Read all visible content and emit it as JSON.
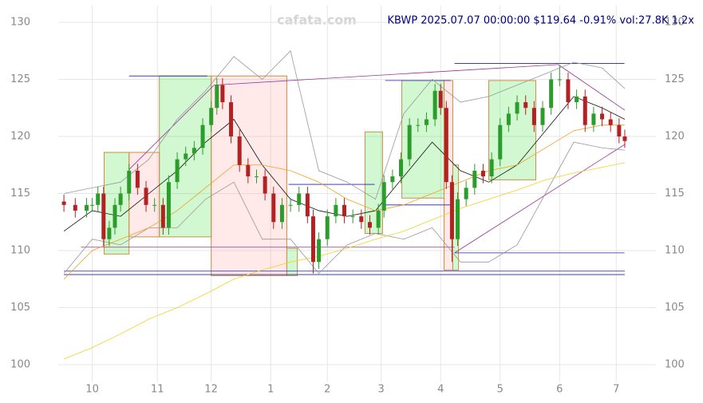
{
  "chart_data": {
    "type": "candlestick",
    "title": "KBWP 2025.07.07 00:00:00 $119.64 -0.91% vol:27.8K 1.2x",
    "watermark": "cafata.com",
    "xlim": [
      -12,
      199
    ],
    "xticks": [
      {
        "value": 0,
        "label": "10"
      },
      {
        "value": 23,
        "label": "11"
      },
      {
        "value": 42,
        "label": "12"
      },
      {
        "value": 63,
        "label": "1"
      },
      {
        "value": 83,
        "label": "2"
      },
      {
        "value": 102,
        "label": "3"
      },
      {
        "value": 123,
        "label": "4"
      },
      {
        "value": 144,
        "label": "5"
      },
      {
        "value": 165,
        "label": "6"
      },
      {
        "value": 185,
        "label": "7"
      }
    ],
    "ylim": [
      98.5,
      131.5
    ],
    "yticks": [
      100,
      105,
      110,
      115,
      120,
      125,
      130
    ],
    "grid": true,
    "up_color": "#2a9d2a",
    "down_color": "#b22222",
    "x": [
      -10,
      -6,
      -2,
      0,
      2,
      4,
      6,
      8,
      10,
      13,
      16,
      19,
      22,
      25,
      27,
      30,
      33,
      36,
      39,
      42,
      44,
      46,
      49,
      52,
      55,
      58,
      61,
      64,
      67,
      70,
      73,
      76,
      78,
      80,
      83,
      86,
      89,
      92,
      95,
      98,
      101,
      103,
      106,
      109,
      112,
      115,
      118,
      121,
      123,
      125,
      127,
      129,
      132,
      135,
      138,
      141,
      144,
      147,
      150,
      153,
      156,
      159,
      162,
      165,
      168,
      171,
      174,
      177,
      180,
      183,
      186,
      188
    ],
    "open": [
      114.3,
      114,
      113.5,
      114,
      114,
      115,
      111,
      112,
      114,
      115,
      117,
      115.5,
      114,
      114,
      112,
      116,
      118,
      118.5,
      119,
      121,
      122.5,
      124.5,
      123,
      120,
      117.5,
      116.5,
      116.5,
      115,
      112.5,
      114,
      114,
      115,
      113,
      109,
      111,
      113,
      114,
      113,
      113,
      112.5,
      112,
      113.5,
      116,
      116.5,
      118,
      121,
      121,
      121.5,
      124,
      122.5,
      116,
      111,
      114.5,
      115.5,
      117,
      116.5,
      118,
      121,
      122,
      123,
      122.5,
      121,
      122.5,
      125,
      125,
      123,
      123.5,
      121,
      122,
      121.5,
      121,
      120
    ],
    "close": [
      114,
      113.5,
      114,
      114,
      115,
      111,
      112,
      114,
      115,
      117,
      115.5,
      114,
      114,
      112,
      116,
      118,
      118.5,
      119,
      121,
      122.5,
      124.5,
      123,
      120,
      117.5,
      116.5,
      116.5,
      115,
      112.5,
      114,
      114,
      115,
      113,
      109,
      111,
      113,
      114,
      113,
      113,
      112.5,
      112,
      113.5,
      116,
      116.5,
      118,
      121,
      121,
      121.5,
      124,
      122.5,
      116,
      111,
      114.5,
      115.5,
      117,
      116.5,
      118,
      121,
      122,
      123,
      122.5,
      121,
      122.5,
      125,
      125,
      123,
      123.5,
      121,
      122,
      121.5,
      121,
      120,
      119.6
    ],
    "high": [
      114.9,
      114.6,
      114.6,
      114.6,
      115.6,
      115.6,
      112.6,
      114.6,
      115.6,
      117.6,
      117.6,
      116.1,
      114.6,
      114.6,
      116.6,
      118.6,
      119.1,
      119.6,
      121.6,
      123.1,
      125.1,
      125.1,
      123.6,
      120.6,
      118.1,
      117.1,
      117.1,
      115.6,
      114.6,
      114.6,
      115.6,
      115.6,
      113.6,
      111.6,
      113.6,
      114.6,
      114.6,
      113.6,
      113.6,
      113.1,
      114.1,
      116.6,
      117.1,
      118.6,
      121.6,
      121.6,
      122.1,
      124.6,
      124.6,
      123.1,
      116.6,
      115.1,
      116.1,
      117.6,
      117.6,
      118.6,
      121.6,
      122.6,
      123.6,
      123.6,
      123.1,
      123.1,
      125.6,
      126.2,
      125.6,
      124.1,
      124.1,
      122.6,
      122.6,
      122.1,
      121.6,
      120.6
    ],
    "low": [
      113.4,
      112.9,
      112.9,
      113.4,
      113.4,
      110.4,
      110.4,
      111.4,
      113.4,
      114.4,
      114.9,
      113.4,
      113.4,
      111.4,
      111.4,
      115.4,
      117.4,
      117.9,
      118.4,
      120.4,
      121.9,
      122.4,
      119.4,
      116.9,
      115.9,
      115.9,
      114.4,
      111.9,
      111.9,
      113.4,
      113.4,
      112.4,
      108,
      108.4,
      110.4,
      112.4,
      112.4,
      112.4,
      111.9,
      111.4,
      111.4,
      112.9,
      115.4,
      115.9,
      117.4,
      120.4,
      120.4,
      120.9,
      121.9,
      115.4,
      109,
      110.4,
      113.9,
      114.9,
      115.9,
      115.9,
      117.4,
      120.4,
      121.4,
      121.9,
      120.4,
      120.4,
      121.9,
      124.4,
      122.4,
      122.4,
      120.4,
      120.4,
      120.9,
      120.4,
      119.4,
      119
    ],
    "overlays": [
      {
        "color": "#999999",
        "x": [
          -10,
          0,
          10,
          20,
          30,
          40,
          50,
          60,
          70,
          80,
          90,
          100,
          110,
          120,
          130,
          140,
          150,
          160,
          170,
          180,
          188
        ],
        "values": [
          115,
          115.5,
          116,
          118,
          121.5,
          124,
          127,
          125,
          127.5,
          117,
          116,
          114.5,
          122,
          125,
          123,
          123.5,
          124.5,
          125.5,
          126.5,
          126,
          124.2
        ]
      },
      {
        "color": "#999999",
        "x": [
          -10,
          0,
          10,
          20,
          30,
          40,
          50,
          60,
          70,
          80,
          90,
          100,
          110,
          120,
          130,
          140,
          150,
          160,
          170,
          180,
          188
        ],
        "values": [
          108,
          111,
          110.5,
          112,
          112,
          114.5,
          116,
          111,
          111,
          108,
          110.5,
          111.5,
          111,
          112,
          109,
          109,
          110.5,
          115,
          119.5,
          119,
          118.8
        ]
      },
      {
        "color": "#111111",
        "x": [
          -10,
          0,
          10,
          20,
          30,
          40,
          50,
          60,
          70,
          80,
          90,
          100,
          110,
          120,
          130,
          140,
          150,
          160,
          170,
          180,
          188
        ],
        "values": [
          111.7,
          113.5,
          113,
          115,
          117,
          119.5,
          121.5,
          117.5,
          114.5,
          113.5,
          113,
          113.5,
          116.5,
          119.5,
          117,
          116,
          117.5,
          120.5,
          123.5,
          122.5,
          121.5
        ]
      },
      {
        "color": "#f0a020",
        "x": [
          -10,
          0,
          10,
          20,
          30,
          40,
          50,
          60,
          70,
          80,
          90,
          100,
          110,
          120,
          130,
          140,
          150,
          160,
          170,
          180,
          188
        ],
        "values": [
          107.5,
          110,
          111,
          112,
          113.5,
          115.5,
          117.5,
          117.5,
          117,
          116,
          114.5,
          113.5,
          114,
          115,
          116,
          117,
          117.5,
          119,
          120.5,
          121,
          121
        ]
      },
      {
        "color": "#f5d020",
        "x": [
          -10,
          0,
          10,
          20,
          30,
          40,
          50,
          60,
          70,
          80,
          90,
          100,
          110,
          120,
          130,
          140,
          150,
          160,
          170,
          180,
          188
        ],
        "values": [
          100.5,
          101.5,
          102.7,
          104,
          105,
          106.2,
          107.5,
          108.3,
          109,
          109.5,
          110.2,
          111,
          111.7,
          112.7,
          113.7,
          114.5,
          115.3,
          116.2,
          116.8,
          117.3,
          117.7
        ]
      }
    ],
    "zones": [
      {
        "color": "#33dd33",
        "x": [
          4.2,
          13
        ],
        "y": [
          109.7,
          118.6
        ]
      },
      {
        "color": "#ff9999",
        "x": [
          13,
          23.7
        ],
        "y": [
          111.2,
          118.6
        ]
      },
      {
        "color": "#33dd33",
        "x": [
          23.7,
          42
        ],
        "y": [
          111.2,
          125.3
        ]
      },
      {
        "color": "#ff9999",
        "x": [
          42,
          68.7
        ],
        "y": [
          107.8,
          125.3
        ]
      },
      {
        "color": "#33dd33",
        "x": [
          68.7,
          72.4
        ],
        "y": [
          107.8,
          110.2
        ]
      },
      {
        "color": "#33dd33",
        "x": [
          96.3,
          102.5
        ],
        "y": [
          111.5,
          120.4
        ]
      },
      {
        "color": "#33dd33",
        "x": [
          109.3,
          124.2
        ],
        "y": [
          114.6,
          124.9
        ]
      },
      {
        "color": "#ff9999",
        "x": [
          124.2,
          127.3
        ],
        "y": [
          108.3,
          124.9
        ]
      },
      {
        "color": "#33dd33",
        "x": [
          127.3,
          129.3
        ],
        "y": [
          108.3,
          117.5
        ]
      },
      {
        "color": "#33dd33",
        "x": [
          140,
          156.6
        ],
        "y": [
          116.2,
          124.9
        ]
      }
    ],
    "lines": [
      {
        "color": "#2222aa",
        "x": [
          13,
          40.6
        ],
        "y": [
          125.3,
          125.3
        ]
      },
      {
        "color": "#2222aa",
        "x": [
          69.3,
          99.7
        ],
        "y": [
          115.8,
          115.8
        ]
      },
      {
        "color": "#2222aa",
        "x": [
          103.4,
          126.5
        ],
        "y": [
          124.9,
          124.9
        ]
      },
      {
        "color": "#2222aa",
        "x": [
          103.4,
          126.5
        ],
        "y": [
          114,
          114
        ]
      },
      {
        "color": "#2222aa",
        "x": [
          127.9,
          187.9
        ],
        "y": [
          126.4,
          126.4
        ]
      },
      {
        "color": "#2222aa",
        "x": [
          127.9,
          187.9
        ],
        "y": [
          109.8,
          109.8
        ]
      },
      {
        "color": "#2222aa",
        "x": [
          -10,
          188
        ],
        "y": [
          108.2,
          108.2
        ]
      },
      {
        "color": "#2222aa",
        "x": [
          -10,
          188
        ],
        "y": [
          107.9,
          107.9
        ]
      },
      {
        "color": "#993399",
        "x": [
          -4,
          127.9
        ],
        "y": [
          110.3,
          110.3
        ]
      },
      {
        "color": "#993399",
        "x": [
          13,
          43
        ],
        "y": [
          117.1,
          124.5
        ]
      },
      {
        "color": "#993399",
        "x": [
          43,
          164.5
        ],
        "y": [
          124.5,
          126.3
        ]
      },
      {
        "color": "#993399",
        "x": [
          164.5,
          188
        ],
        "y": [
          126.3,
          122.3
        ]
      },
      {
        "color": "#993399",
        "x": [
          127.9,
          188
        ],
        "y": [
          109.8,
          119.3
        ]
      }
    ]
  }
}
